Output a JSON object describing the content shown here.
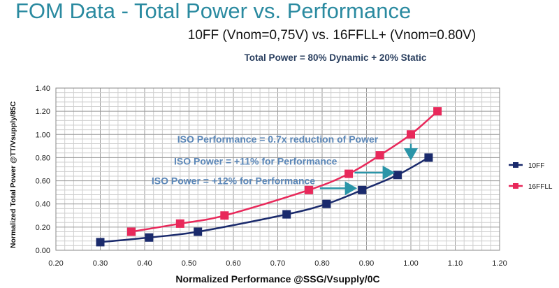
{
  "slide": {
    "title": "FOM Data - Total Power vs. Performance",
    "subtitle": "10FF (Vnom=0,75V) vs. 16FFLL+ (Vnom=0.80V)",
    "note": "Total Power = 80% Dynamic + 20% Static"
  },
  "chart_data": {
    "type": "line",
    "xlabel": "Normalized Performance @SSG/Vsupply/0C",
    "ylabel": "Normalized Total Power @TT/Vsupply/85C",
    "xlim": [
      0.2,
      1.2
    ],
    "ylim": [
      0,
      1.4
    ],
    "xticks": [
      "0.20",
      "0.30",
      "0.40",
      "0.50",
      "0.60",
      "0.70",
      "0.80",
      "0.90",
      "1.00",
      "1.10",
      "1.20"
    ],
    "yticks": [
      "0.00",
      "0.20",
      "0.40",
      "0.60",
      "0.80",
      "1.00",
      "1.20",
      "1.40"
    ],
    "grid": true,
    "legend_position": "right",
    "series": [
      {
        "name": "10FF",
        "color": "#1a2a6c",
        "x": [
          0.3,
          0.41,
          0.52,
          0.72,
          0.81,
          0.89,
          0.97,
          1.04
        ],
        "y": [
          0.07,
          0.11,
          0.16,
          0.31,
          0.4,
          0.52,
          0.65,
          0.8
        ]
      },
      {
        "name": "16FFLL",
        "color": "#e8285a",
        "x": [
          0.37,
          0.48,
          0.58,
          0.77,
          0.86,
          0.93,
          1.0,
          1.06
        ],
        "y": [
          0.16,
          0.23,
          0.3,
          0.52,
          0.66,
          0.82,
          1.0,
          1.2
        ]
      }
    ],
    "annotations": [
      {
        "text": "ISO Performance = 0.7x reduction of Power",
        "x": 0.7,
        "y": 0.93
      },
      {
        "text": "ISO Power = +11% for Performance",
        "x": 0.65,
        "y": 0.74
      },
      {
        "text": "ISO Power = +12% for Performance",
        "x": 0.6,
        "y": 0.57
      }
    ],
    "arrows": [
      {
        "from": [
          1.0,
          0.92
        ],
        "to": [
          1.0,
          0.79
        ]
      },
      {
        "from": [
          0.873,
          0.67
        ],
        "to": [
          0.96,
          0.67
        ]
      },
      {
        "from": [
          0.795,
          0.535
        ],
        "to": [
          0.875,
          0.535
        ]
      }
    ],
    "annotation_color": "#5b87b8",
    "arrow_color": "#2a95a8"
  }
}
